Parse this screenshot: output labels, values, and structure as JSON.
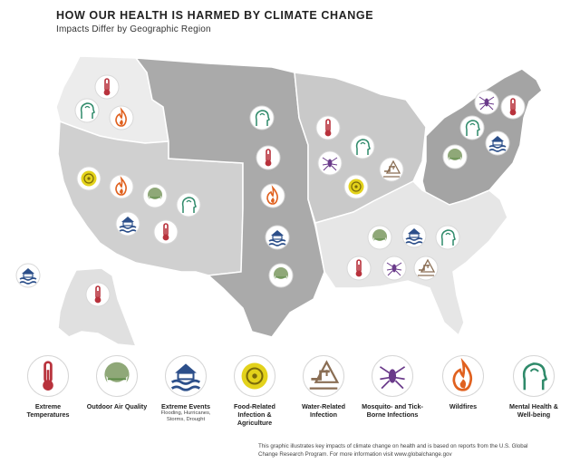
{
  "title": "HOW OUR HEALTH IS HARMED BY CLIMATE CHANGE",
  "subtitle": "Impacts Differ by Geographic Region",
  "legend": [
    {
      "icon": "thermometer-icon",
      "label": "Extreme Temperatures",
      "sub": ""
    },
    {
      "icon": "air-quality-icon",
      "label": "Outdoor Air Quality",
      "sub": ""
    },
    {
      "icon": "flood-icon",
      "label": "Extreme Events",
      "sub": "Flooding, Hurricanes, Storms, Drought"
    },
    {
      "icon": "biohazard-icon",
      "label": "Food-Related Infection & Agriculture",
      "sub": ""
    },
    {
      "icon": "water-warning-icon",
      "label": "Water-Related Infection",
      "sub": ""
    },
    {
      "icon": "mosquito-tick-icon",
      "label": "Mosquito- and Tick-Borne Infections",
      "sub": ""
    },
    {
      "icon": "wildfire-icon",
      "label": "Wildfires",
      "sub": ""
    },
    {
      "icon": "mental-health-icon",
      "label": "Mental Health & Well-being",
      "sub": ""
    }
  ],
  "footer": "This graphic illustrates key impacts of climate change on health and is based on reports from the U.S. Global Change Research Program. For more information visit www.globalchange.gov",
  "colors": {
    "temp": "#b8323c",
    "air": "#5a8a45",
    "flood": "#2c4f8a",
    "bio": "#b9a614",
    "water": "#8a6e54",
    "mosquito": "#6a3a8a",
    "fire": "#e0611f",
    "mental": "#2f8a6a"
  },
  "regions": [
    {
      "name": "northwest",
      "icons": [
        "thermometer-icon",
        "mental-health-icon",
        "wildfire-icon"
      ]
    },
    {
      "name": "southwest",
      "icons": [
        "biohazard-icon",
        "wildfire-icon",
        "air-quality-icon",
        "mental-health-icon",
        "flood-icon",
        "thermometer-icon"
      ]
    },
    {
      "name": "great-plains",
      "icons": [
        "mental-health-icon",
        "thermometer-icon",
        "wildfire-icon",
        "flood-icon",
        "air-quality-icon"
      ]
    },
    {
      "name": "midwest",
      "icons": [
        "thermometer-icon",
        "mental-health-icon",
        "mosquito-tick-icon",
        "water-warning-icon",
        "biohazard-icon"
      ]
    },
    {
      "name": "northeast",
      "icons": [
        "mosquito-tick-icon",
        "thermometer-icon",
        "mental-health-icon",
        "flood-icon",
        "air-quality-icon"
      ]
    },
    {
      "name": "southeast",
      "icons": [
        "air-quality-icon",
        "flood-icon",
        "mental-health-icon",
        "thermometer-icon",
        "mosquito-tick-icon",
        "water-warning-icon"
      ]
    },
    {
      "name": "alaska",
      "icons": [
        "thermometer-icon"
      ]
    },
    {
      "name": "hawaii",
      "icons": [
        "flood-icon"
      ]
    }
  ]
}
